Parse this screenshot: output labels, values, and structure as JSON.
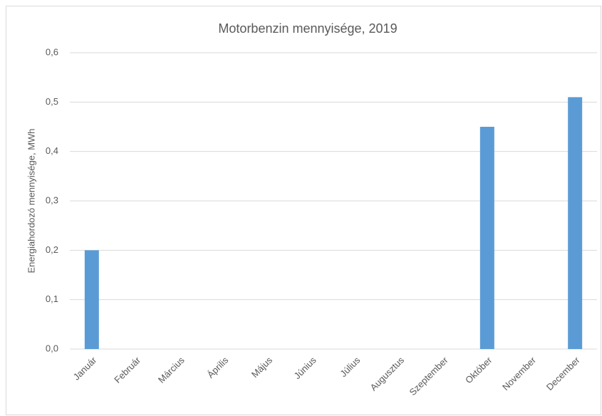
{
  "chart_data": {
    "type": "bar",
    "title": "Motorbenzin mennyisége, 2019",
    "y_label": "Energiahordozó mennyisége, MWh",
    "categories": [
      "Január",
      "Február",
      "Március",
      "Április",
      "Május",
      "Június",
      "Július",
      "Augusztus",
      "Szeptember",
      "Október",
      "November",
      "December"
    ],
    "values": [
      0.2,
      0,
      0,
      0,
      0,
      0,
      0,
      0,
      0,
      0.45,
      0,
      0.51
    ],
    "color": "#5b9bd5",
    "ylim": [
      0,
      0.6
    ],
    "yticks": [
      {
        "value": 0,
        "label": "0,0"
      },
      {
        "value": 0.1,
        "label": "0,1"
      },
      {
        "value": 0.2,
        "label": "0,2"
      },
      {
        "value": 0.3,
        "label": "0,3"
      },
      {
        "value": 0.4,
        "label": "0,4"
      },
      {
        "value": 0.5,
        "label": "0,5"
      },
      {
        "value": 0.6,
        "label": "0,6"
      }
    ],
    "grid": true
  }
}
